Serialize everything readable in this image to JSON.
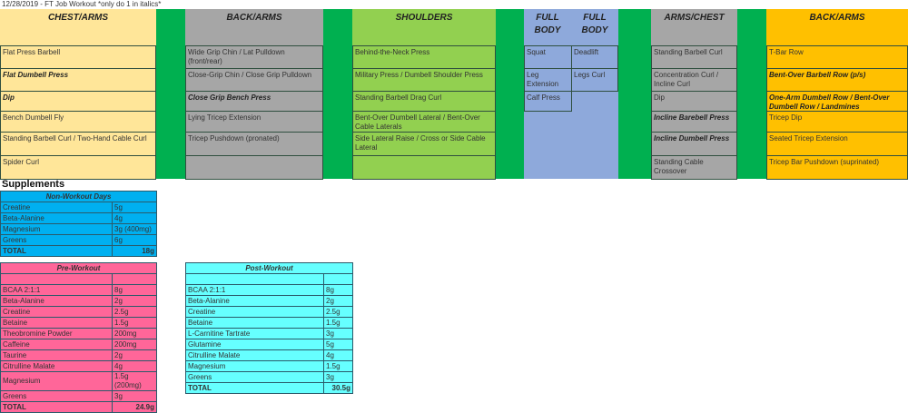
{
  "title": "12/28/2019 - FT Job Workout *only do 1 in italics*",
  "colors": {
    "chest_arms": "#FFE699",
    "back_arms": "#A6A6A6",
    "shoulders": "#92D050",
    "full_body": "#8EA9DB",
    "arms_chest": "#A6A6A6",
    "back_arms2": "#FFC000",
    "separator": "#00B050",
    "non_workout": "#00B0F0",
    "pre_workout": "#FF6699",
    "post_workout": "#66FFFF"
  },
  "workout": [
    {
      "header": "CHEST/ARMS",
      "cells": [
        {
          "text": "Flat Press Barbell"
        },
        {
          "text": "Flat Dumbell Press",
          "italic": true
        },
        {
          "text": "Dip",
          "italic": true
        },
        {
          "text": "Bench Dumbell Fly"
        },
        {
          "text": "Standing Barbell Curl / Two-Hand Cable Curl"
        },
        {
          "text": "Spider Curl"
        }
      ]
    },
    {
      "header": "BACK/ARMS",
      "cells": [
        {
          "text": "Wide Grip Chin / Lat Pulldown (front/rear)"
        },
        {
          "text": "Close-Grip Chin / Close Grip Pulldown"
        },
        {
          "text": "Close Grip Bench Press",
          "italic": true
        },
        {
          "text": "Lying Tricep Extension"
        },
        {
          "text": "Tricep Pushdown (pronated)"
        },
        {
          "text": ""
        }
      ]
    },
    {
      "header": "SHOULDERS",
      "cells": [
        {
          "text": "Behind-the-Neck Press"
        },
        {
          "text": "Military Press / Dumbell Shoulder Press"
        },
        {
          "text": "Standing Barbell Drag Curl"
        },
        {
          "text": "Bent-Over Dumbell Lateral / Bent-Over Cable Laterals"
        },
        {
          "text": "Side Lateral Raise / Cross or Side Cable Lateral"
        },
        {
          "text": ""
        }
      ]
    },
    {
      "header": "FULL BODY",
      "header2": "FULL BODY",
      "cells": [
        {
          "text": "Squat"
        },
        {
          "text": "Leg Extension"
        },
        {
          "text": "Calf Press"
        }
      ],
      "cells2": [
        {
          "text": "Deadlift"
        },
        {
          "text": "Legs Curl"
        }
      ]
    },
    {
      "header": "ARMS/CHEST",
      "cells": [
        {
          "text": "Standing Barbell Curl"
        },
        {
          "text": "Concentration Curl / Incline Curl"
        },
        {
          "text": "Dip"
        },
        {
          "text": "Incline Barebell Press",
          "italic": true
        },
        {
          "text": "Incline Dumbell Press",
          "italic": true
        },
        {
          "text": "Standing Cable Crossover"
        }
      ]
    },
    {
      "header": "BACK/ARMS",
      "cells": [
        {
          "text": "T-Bar Row"
        },
        {
          "text": "Bent-Over Barbell Row (p/s)",
          "italic": true
        },
        {
          "text": "One-Arm Dumbell Row / Bent-Over Dumbell Row / Landmines",
          "italic": true
        },
        {
          "text": "Tricep Dip"
        },
        {
          "text": "Seated Tricep Extension"
        },
        {
          "text": "Tricep Bar Pushdown (suprinated)"
        }
      ]
    }
  ],
  "supplements": {
    "label": "Supplements",
    "non_workout": {
      "title": "Non-Workout Days",
      "rows": [
        [
          "Creatine",
          "5g"
        ],
        [
          "Beta-Alanine",
          "4g"
        ],
        [
          "Magnesium",
          "3g (400mg)"
        ],
        [
          "Greens",
          "6g"
        ]
      ],
      "total_label": "TOTAL",
      "total": "18g"
    },
    "pre_workout": {
      "title": "Pre-Workout",
      "rows": [
        [
          "BCAA 2:1:1",
          "8g"
        ],
        [
          "Beta-Alanine",
          "2g"
        ],
        [
          "Creatine",
          "2.5g"
        ],
        [
          "Betaine",
          "1.5g"
        ],
        [
          "Theobromine Powder",
          "200mg"
        ],
        [
          "Caffeine",
          "200mg"
        ],
        [
          "Taurine",
          "2g"
        ],
        [
          "Citrulline Malate",
          "4g"
        ],
        [
          "Magnesium",
          "1.5g (200mg)"
        ],
        [
          "Greens",
          "3g"
        ]
      ],
      "total_label": "TOTAL",
      "total": "24.9g"
    },
    "post_workout": {
      "title": "Post-Workout",
      "rows": [
        [
          "BCAA 2:1:1",
          "8g"
        ],
        [
          "Beta-Alanine",
          "2g"
        ],
        [
          "Creatine",
          "2.5g"
        ],
        [
          "Betaine",
          "1.5g"
        ],
        [
          "L-Carnitine Tartrate",
          "3g"
        ],
        [
          "Glutamine",
          "5g"
        ],
        [
          "Citrulline Malate",
          "4g"
        ],
        [
          "Magnesium",
          "1.5g"
        ],
        [
          "Greens",
          "3g"
        ]
      ],
      "total_label": "TOTAL",
      "total": "30.5g"
    }
  }
}
